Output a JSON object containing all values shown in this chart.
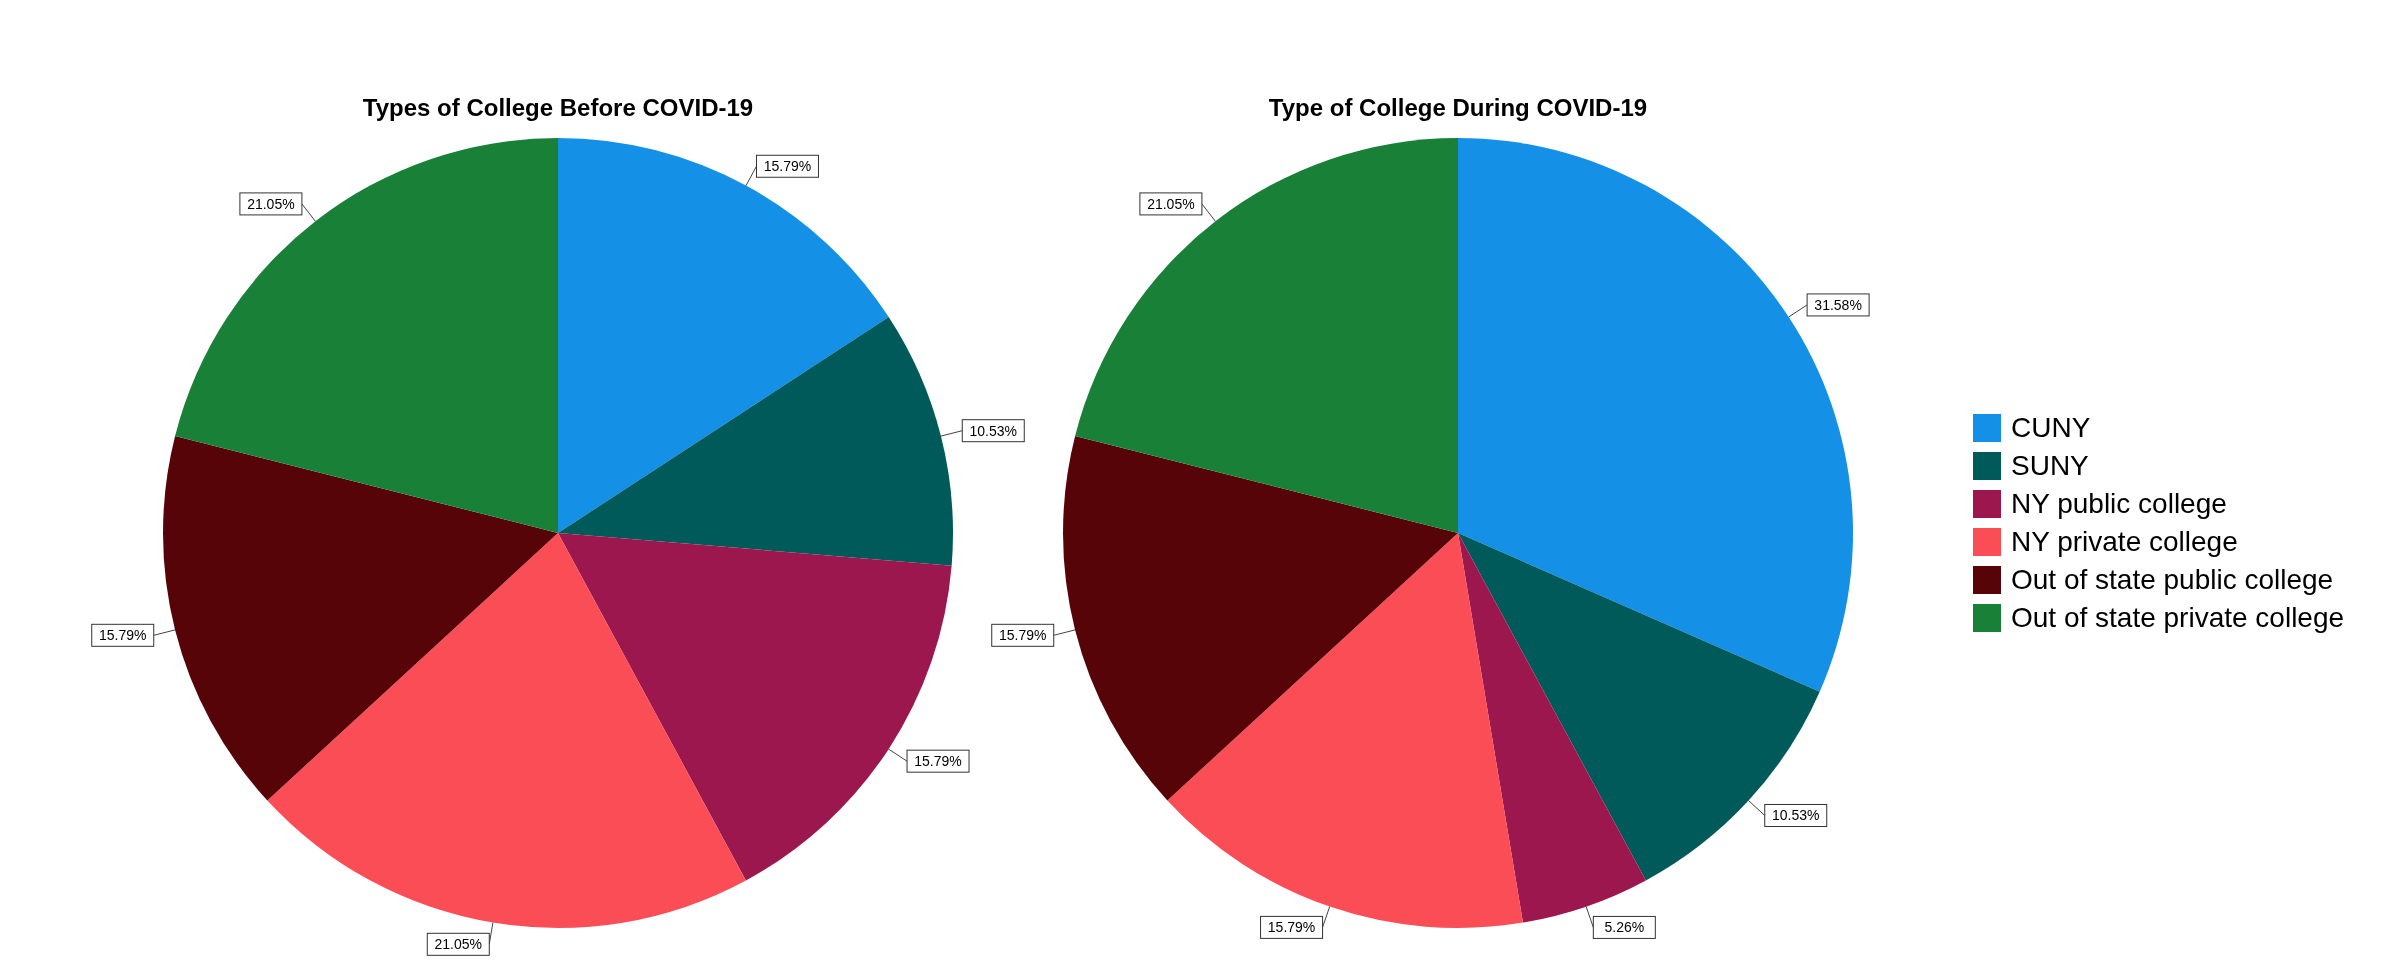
{
  "chart_data": [
    {
      "type": "pie",
      "title": "Types of College Before COVID-19",
      "categories": [
        null,
        null,
        null,
        null,
        null,
        null
      ],
      "values": [
        15.79,
        10.53,
        15.79,
        21.05,
        15.79,
        21.05
      ],
      "colors": [
        "#1490e6",
        "#005a5a",
        "#9c174d",
        "#fa4d56",
        "#570408",
        "#198038"
      ],
      "value_labels": [
        "15.79%",
        "10.53%",
        "15.79%",
        "21.05%",
        "15.79%",
        "21.05%"
      ]
    },
    {
      "type": "pie",
      "title": "Type of College During COVID-19",
      "categories": [
        "CUNY",
        "SUNY",
        "NY public college",
        "NY private college",
        "Out of state public college",
        "Out of state private college"
      ],
      "values": [
        31.58,
        10.53,
        5.26,
        15.79,
        15.79,
        21.05
      ],
      "colors": [
        "#1490e6",
        "#005a5a",
        "#9c174d",
        "#fa4d56",
        "#570408",
        "#198038"
      ],
      "value_labels": [
        "31.58%",
        "10.53%",
        "5.26%",
        "15.79%",
        "15.79%",
        "21.05%"
      ],
      "legend": "right"
    }
  ]
}
